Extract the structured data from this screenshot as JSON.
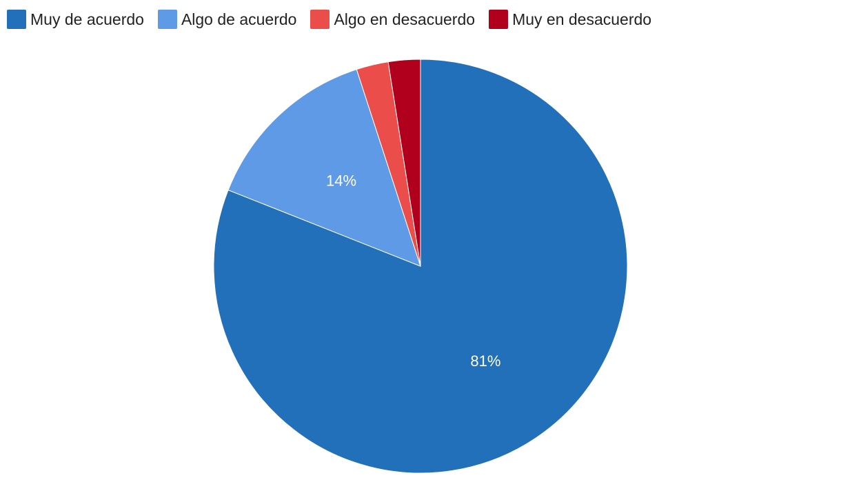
{
  "chart_data": {
    "type": "pie",
    "categories": [
      "Muy de acuerdo",
      "Algo de acuerdo",
      "Algo en desacuerdo",
      "Muy en desacuerdo"
    ],
    "values": [
      81,
      14,
      2.5,
      2.5
    ],
    "colors": [
      "#2270b9",
      "#5e9ae6",
      "#eb4d4b",
      "#b0001d"
    ],
    "data_labels": [
      "81%",
      "14%",
      "",
      ""
    ],
    "legend_position": "top-left",
    "title": ""
  }
}
